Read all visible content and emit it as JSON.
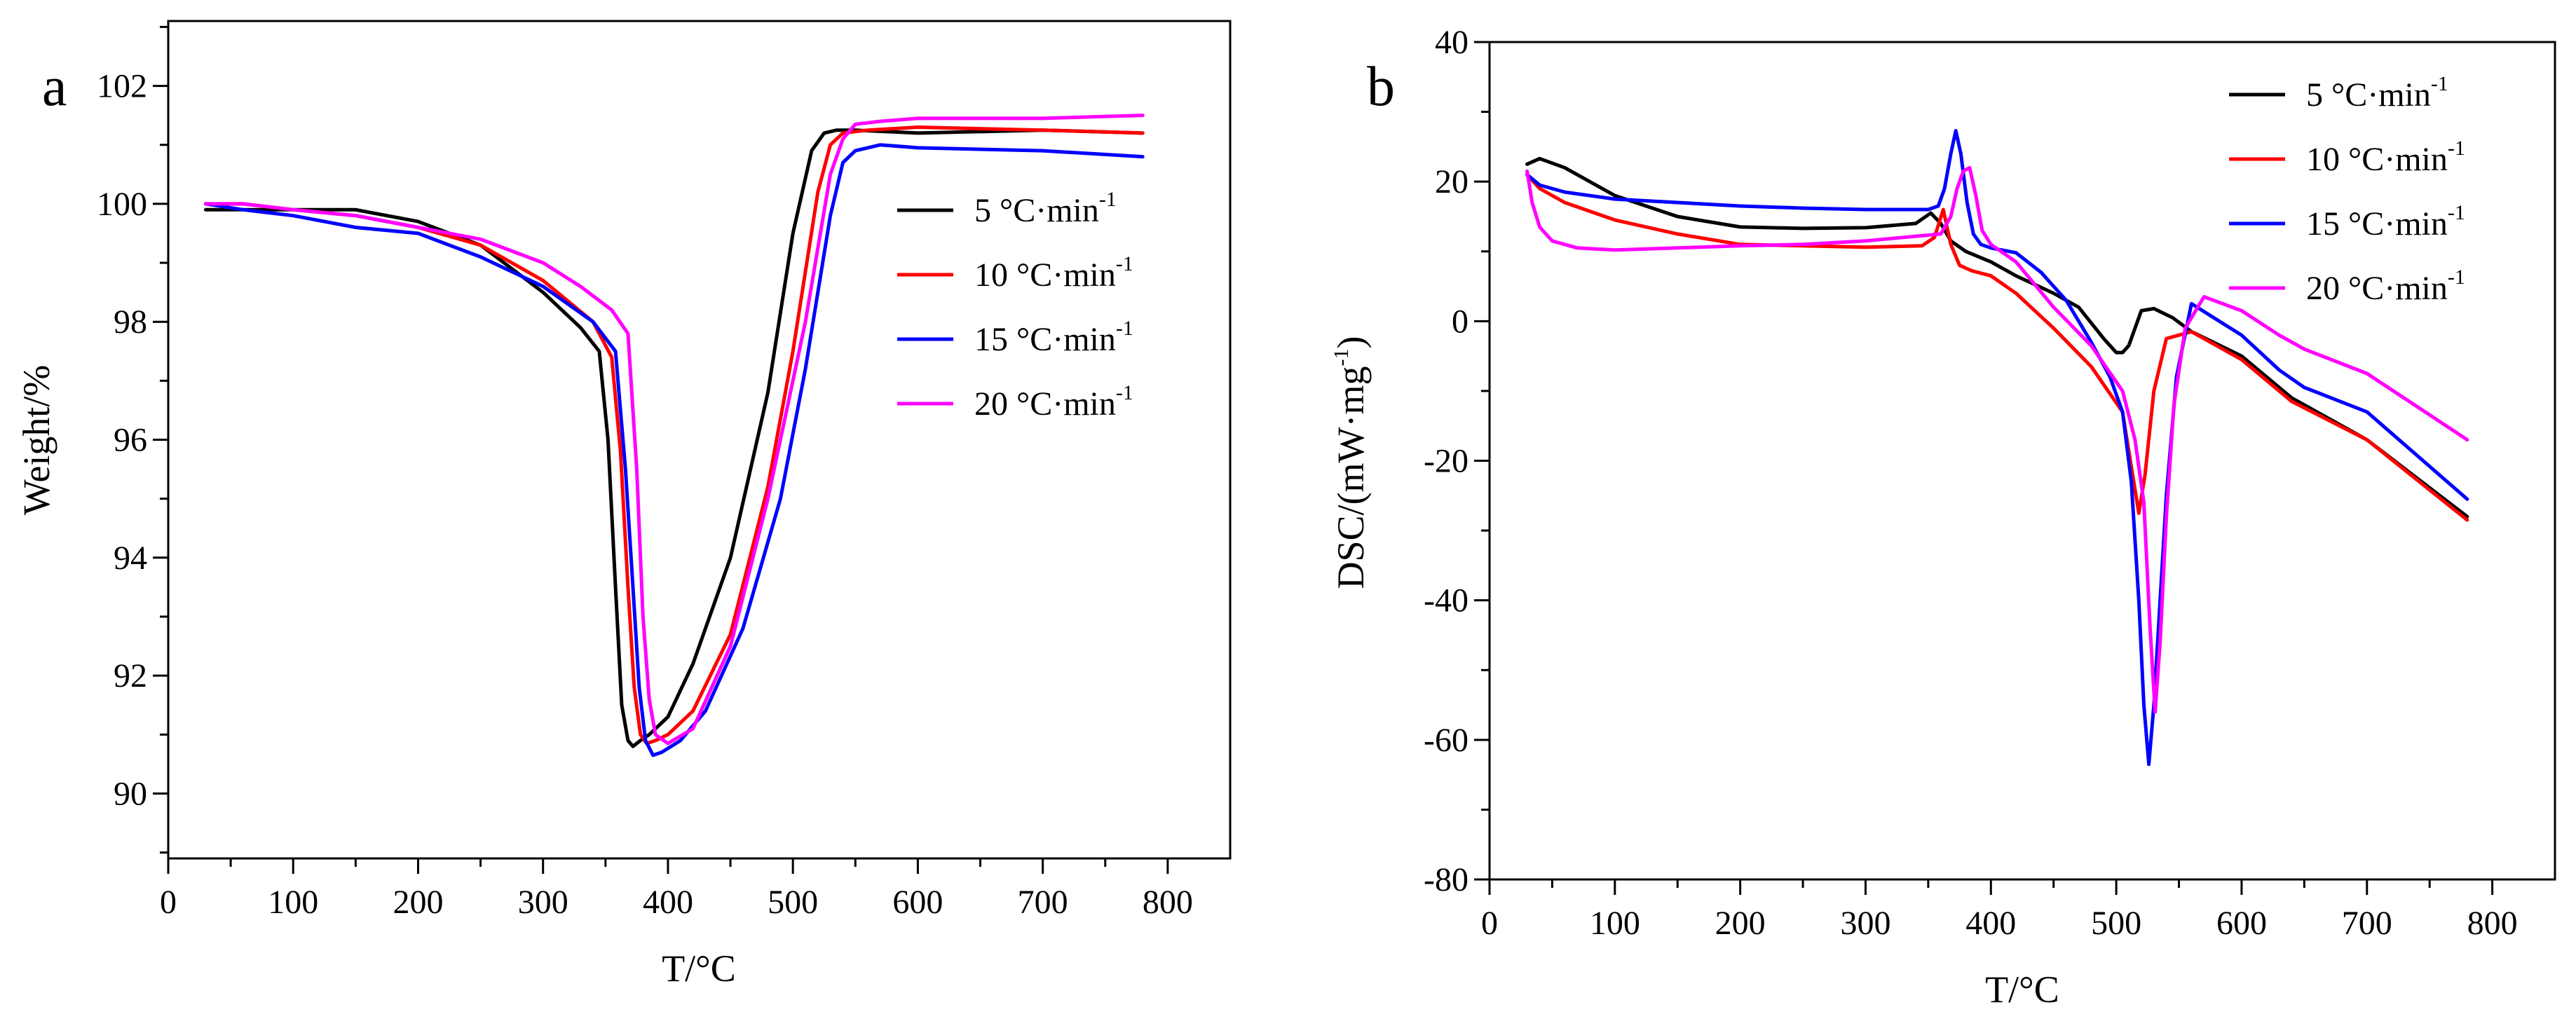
{
  "chart_data": [
    {
      "type": "line",
      "panel_label": "a",
      "xlabel": "T/°C",
      "ylabel": "Weight/%",
      "xlim": [
        0,
        850
      ],
      "ylim": [
        88.9,
        103.1
      ],
      "xticks": [
        0,
        100,
        200,
        300,
        400,
        500,
        600,
        700,
        800
      ],
      "yticks": [
        90,
        92,
        94,
        96,
        98,
        100,
        102
      ],
      "legend_position": "center-right",
      "series": [
        {
          "name": "5 °C·min",
          "sup": "-1",
          "color": "#000000",
          "x": [
            30,
            60,
            100,
            150,
            200,
            250,
            300,
            330,
            345,
            352,
            358,
            363,
            368,
            372,
            378,
            385,
            400,
            420,
            450,
            480,
            500,
            515,
            525,
            535,
            550,
            600,
            700,
            780
          ],
          "y": [
            99.9,
            99.9,
            99.9,
            99.9,
            99.7,
            99.3,
            98.5,
            97.9,
            97.5,
            96.0,
            93.5,
            91.5,
            90.9,
            90.8,
            90.9,
            91.0,
            91.3,
            92.2,
            94.0,
            96.8,
            99.5,
            100.9,
            101.2,
            101.25,
            101.25,
            101.2,
            101.25,
            101.2
          ]
        },
        {
          "name": "10 °C·min",
          "sup": "-1",
          "color": "#ff0000",
          "x": [
            30,
            60,
            100,
            150,
            200,
            250,
            300,
            340,
            355,
            362,
            368,
            373,
            378,
            383,
            390,
            400,
            420,
            450,
            480,
            500,
            520,
            530,
            540,
            560,
            600,
            700,
            780
          ],
          "y": [
            100.0,
            100.0,
            99.9,
            99.8,
            99.6,
            99.3,
            98.7,
            98.0,
            97.4,
            95.8,
            93.5,
            91.8,
            91.0,
            90.85,
            90.9,
            91.0,
            91.4,
            92.7,
            95.2,
            97.5,
            100.2,
            101.0,
            101.2,
            101.25,
            101.3,
            101.25,
            101.2
          ]
        },
        {
          "name": "15 °C·min",
          "sup": "-1",
          "color": "#0000ff",
          "x": [
            30,
            60,
            100,
            150,
            200,
            250,
            300,
            340,
            358,
            366,
            372,
            377,
            382,
            388,
            395,
            410,
            430,
            460,
            490,
            510,
            530,
            540,
            550,
            570,
            600,
            700,
            780
          ],
          "y": [
            100.0,
            99.9,
            99.8,
            99.6,
            99.5,
            99.1,
            98.6,
            98.0,
            97.5,
            95.5,
            93.5,
            91.8,
            90.9,
            90.65,
            90.7,
            90.9,
            91.4,
            92.8,
            95.0,
            97.2,
            99.8,
            100.7,
            100.9,
            101.0,
            100.95,
            100.9,
            100.8
          ]
        },
        {
          "name": "20 °C·min",
          "sup": "-1",
          "color": "#ff00ff",
          "x": [
            30,
            60,
            100,
            150,
            200,
            250,
            300,
            330,
            355,
            368,
            375,
            380,
            385,
            390,
            400,
            420,
            450,
            480,
            510,
            530,
            540,
            550,
            570,
            600,
            700,
            780
          ],
          "y": [
            100.0,
            100.0,
            99.9,
            99.8,
            99.6,
            99.4,
            99.0,
            98.6,
            98.2,
            97.8,
            95.5,
            93.0,
            91.6,
            91.0,
            90.85,
            91.1,
            92.5,
            95.0,
            98.0,
            100.5,
            101.1,
            101.35,
            101.4,
            101.45,
            101.45,
            101.5
          ]
        }
      ]
    },
    {
      "type": "line",
      "panel_label": "b",
      "xlabel": "T/°C",
      "ylabel": "DSC/(mW·mg",
      "ylabel_sup": "-1",
      "ylabel_close": ")",
      "xlim": [
        0,
        850
      ],
      "ylim": [
        -80,
        40
      ],
      "xticks": [
        0,
        100,
        200,
        300,
        400,
        500,
        600,
        700,
        800
      ],
      "yticks": [
        -80,
        -60,
        -40,
        -20,
        0,
        20,
        40
      ],
      "legend_position": "top-right",
      "series": [
        {
          "name": "5 °C·min",
          "sup": "-1",
          "color": "#000000",
          "x": [
            30,
            40,
            60,
            100,
            150,
            200,
            250,
            300,
            340,
            352,
            360,
            368,
            380,
            400,
            420,
            450,
            470,
            490,
            500,
            505,
            510,
            515,
            520,
            530,
            545,
            560,
            600,
            640,
            700,
            780
          ],
          "y": [
            22.5,
            23.3,
            22.0,
            18.0,
            15.0,
            13.5,
            13.3,
            13.4,
            14.0,
            15.5,
            14.0,
            11.5,
            10.0,
            8.5,
            6.5,
            4.0,
            2.0,
            -2.5,
            -4.5,
            -4.5,
            -3.5,
            -1.0,
            1.5,
            1.8,
            0.5,
            -1.5,
            -5.0,
            -11.0,
            -17.0,
            -28.0
          ]
        },
        {
          "name": "10 °C·min",
          "sup": "-1",
          "color": "#ff0000",
          "x": [
            30,
            40,
            60,
            100,
            150,
            200,
            250,
            300,
            345,
            355,
            362,
            368,
            375,
            385,
            400,
            420,
            450,
            480,
            505,
            513,
            518,
            523,
            530,
            540,
            560,
            600,
            640,
            700,
            780
          ],
          "y": [
            21.0,
            19.0,
            17.0,
            14.5,
            12.5,
            11.0,
            10.8,
            10.6,
            10.8,
            12.0,
            16.0,
            11.0,
            8.0,
            7.2,
            6.5,
            4.0,
            -1.0,
            -6.5,
            -13.0,
            -22.0,
            -27.5,
            -22.0,
            -10.0,
            -2.5,
            -1.5,
            -5.5,
            -11.5,
            -17.0,
            -28.5
          ]
        },
        {
          "name": "15 °C·min",
          "sup": "-1",
          "color": "#0000ff",
          "x": [
            30,
            40,
            60,
            100,
            150,
            200,
            250,
            300,
            350,
            358,
            363,
            368,
            372,
            376,
            381,
            386,
            392,
            400,
            420,
            440,
            460,
            480,
            495,
            505,
            512,
            518,
            522,
            526,
            530,
            535,
            540,
            548,
            560,
            600,
            630,
            650,
            700,
            780
          ],
          "y": [
            21.0,
            19.5,
            18.5,
            17.5,
            17.0,
            16.5,
            16.2,
            16.0,
            16.0,
            16.5,
            19.0,
            24.0,
            27.3,
            24.0,
            17.0,
            12.5,
            11.0,
            10.5,
            9.8,
            7.0,
            3.0,
            -3.0,
            -8.0,
            -13.0,
            -23.0,
            -40.0,
            -55.0,
            -63.5,
            -55.0,
            -40.0,
            -25.0,
            -8.0,
            2.5,
            -2.0,
            -7.0,
            -9.5,
            -13.0,
            -25.5
          ]
        },
        {
          "name": "20 °C·min",
          "sup": "-1",
          "color": "#ff00ff",
          "x": [
            30,
            34,
            40,
            50,
            70,
            100,
            150,
            200,
            250,
            300,
            360,
            368,
            373,
            378,
            383,
            388,
            393,
            400,
            420,
            450,
            480,
            505,
            515,
            522,
            527,
            531,
            535,
            540,
            546,
            555,
            570,
            600,
            630,
            650,
            700,
            780
          ],
          "y": [
            21.5,
            17.0,
            13.5,
            11.5,
            10.5,
            10.2,
            10.5,
            10.8,
            11.0,
            11.5,
            12.5,
            15.0,
            19.0,
            21.5,
            22.0,
            18.0,
            13.0,
            11.0,
            8.5,
            2.0,
            -3.5,
            -10.0,
            -17.0,
            -26.0,
            -44.0,
            -56.0,
            -46.0,
            -28.0,
            -12.0,
            -1.0,
            3.5,
            1.5,
            -2.0,
            -4.0,
            -7.5,
            -17.0
          ]
        }
      ]
    }
  ]
}
